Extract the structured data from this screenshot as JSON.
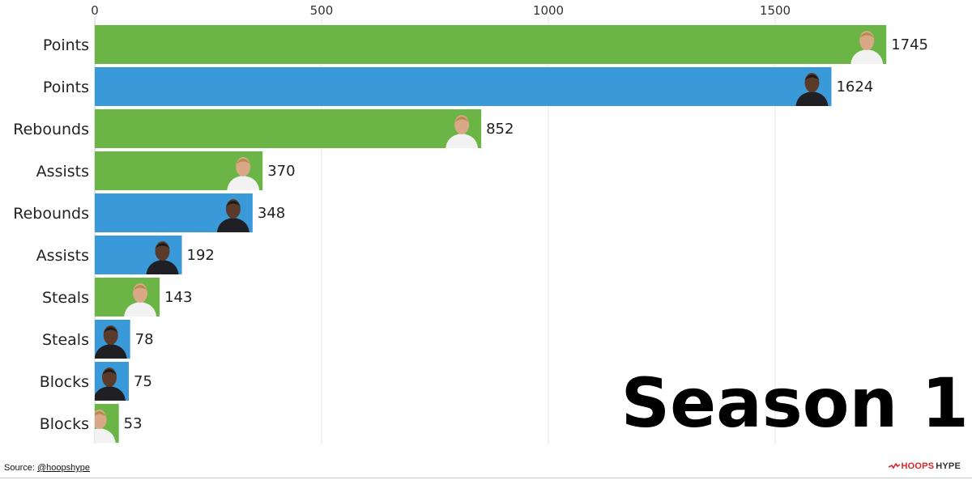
{
  "chart_data": {
    "type": "bar",
    "orientation": "horizontal",
    "title": "",
    "xlabel": "",
    "ylabel": "",
    "xlim": [
      0,
      1800
    ],
    "x_ticks": [
      0,
      500,
      1000,
      1500
    ],
    "grid": true,
    "annotation": "Season 1",
    "series": [
      {
        "color": "#6ab545",
        "icon": "player-headshot-green-icon"
      },
      {
        "color": "#3a9ad9",
        "icon": "player-headshot-blue-icon"
      }
    ],
    "bars": [
      {
        "category": "Points",
        "value": 1745,
        "series": 0
      },
      {
        "category": "Points",
        "value": 1624,
        "series": 1
      },
      {
        "category": "Rebounds",
        "value": 852,
        "series": 0
      },
      {
        "category": "Assists",
        "value": 370,
        "series": 0
      },
      {
        "category": "Rebounds",
        "value": 348,
        "series": 1
      },
      {
        "category": "Assists",
        "value": 192,
        "series": 1
      },
      {
        "category": "Steals",
        "value": 143,
        "series": 0
      },
      {
        "category": "Steals",
        "value": 78,
        "series": 1
      },
      {
        "category": "Blocks",
        "value": 75,
        "series": 1
      },
      {
        "category": "Blocks",
        "value": 53,
        "series": 0
      }
    ]
  },
  "footer": {
    "source_prefix": "Source: ",
    "source_handle": "@hoopshype",
    "logo_hoops": "HOOPS",
    "logo_hype": "HYPE"
  }
}
